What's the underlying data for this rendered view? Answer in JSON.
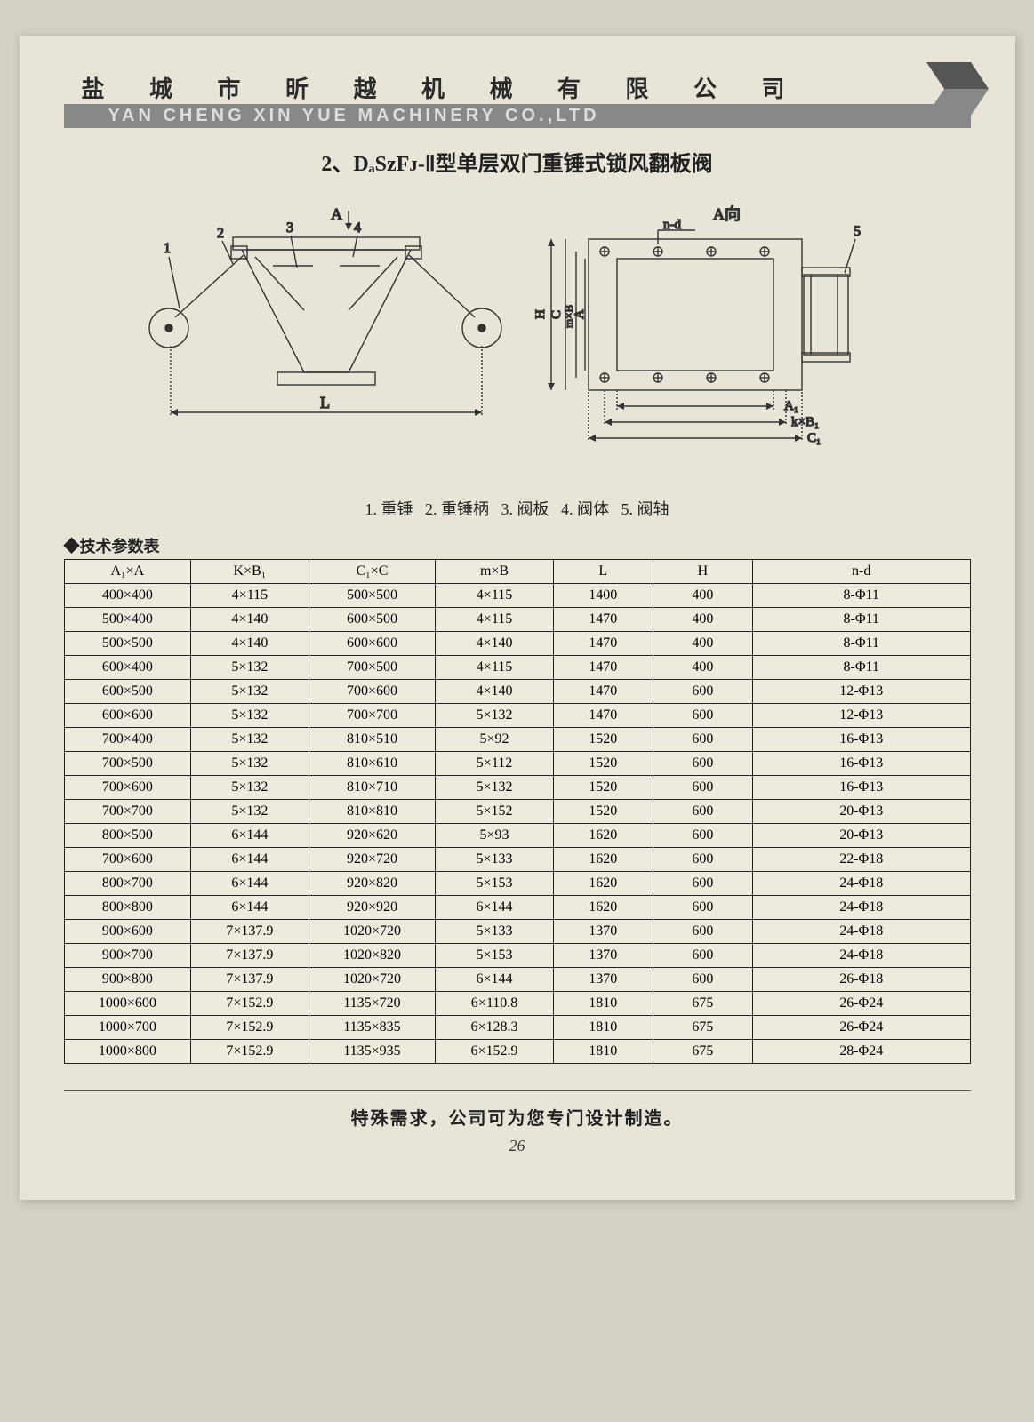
{
  "header": {
    "cn": "盐 城 市 昕 越 机 械 有 限 公 司",
    "en": "YAN CHENG XIN YUE MACHINERY CO.,LTD"
  },
  "title": {
    "prefix": "2、",
    "model": "DₐSᴢFᴊ-Ⅱ",
    "suffix": "型单层双门重锤式锁风翻板阀"
  },
  "diagram": {
    "arrow_label": "A",
    "view_label": "A向",
    "callouts": [
      "1",
      "2",
      "3",
      "4",
      "5"
    ],
    "dim_L": "L",
    "dim_H": "H",
    "dim_C": "C",
    "dim_mB": "m×B",
    "dim_A": "A",
    "dim_nd": "n-d",
    "dim_A1": "A₁",
    "dim_kB1": "k×B₁",
    "dim_C1": "C₁"
  },
  "parts_legend": {
    "p1": "1. 重锤",
    "p2": "2. 重锤柄",
    "p3": "3. 阀板",
    "p4": "4. 阀体",
    "p5": "5. 阀轴"
  },
  "table_title": "◆技术参数表",
  "table": {
    "columns": [
      "A₁×A",
      "K×B₁",
      "C₁×C",
      "m×B",
      "L",
      "H",
      "n-d"
    ],
    "col_widths": [
      "14%",
      "13%",
      "14%",
      "13%",
      "11%",
      "11%",
      "24%"
    ],
    "rows": [
      [
        "400×400",
        "4×115",
        "500×500",
        "4×115",
        "1400",
        "400",
        "8-Φ11"
      ],
      [
        "500×400",
        "4×140",
        "600×500",
        "4×115",
        "1470",
        "400",
        "8-Φ11"
      ],
      [
        "500×500",
        "4×140",
        "600×600",
        "4×140",
        "1470",
        "400",
        "8-Φ11"
      ],
      [
        "600×400",
        "5×132",
        "700×500",
        "4×115",
        "1470",
        "400",
        "8-Φ11"
      ],
      [
        "600×500",
        "5×132",
        "700×600",
        "4×140",
        "1470",
        "600",
        "12-Φ13"
      ],
      [
        "600×600",
        "5×132",
        "700×700",
        "5×132",
        "1470",
        "600",
        "12-Φ13"
      ],
      [
        "700×400",
        "5×132",
        "810×510",
        "5×92",
        "1520",
        "600",
        "16-Φ13"
      ],
      [
        "700×500",
        "5×132",
        "810×610",
        "5×112",
        "1520",
        "600",
        "16-Φ13"
      ],
      [
        "700×600",
        "5×132",
        "810×710",
        "5×132",
        "1520",
        "600",
        "16-Φ13"
      ],
      [
        "700×700",
        "5×132",
        "810×810",
        "5×152",
        "1520",
        "600",
        "20-Φ13"
      ],
      [
        "800×500",
        "6×144",
        "920×620",
        "5×93",
        "1620",
        "600",
        "20-Φ13"
      ],
      [
        "700×600",
        "6×144",
        "920×720",
        "5×133",
        "1620",
        "600",
        "22-Φ18"
      ],
      [
        "800×700",
        "6×144",
        "920×820",
        "5×153",
        "1620",
        "600",
        "24-Φ18"
      ],
      [
        "800×800",
        "6×144",
        "920×920",
        "6×144",
        "1620",
        "600",
        "24-Φ18"
      ],
      [
        "900×600",
        "7×137.9",
        "1020×720",
        "5×133",
        "1370",
        "600",
        "24-Φ18"
      ],
      [
        "900×700",
        "7×137.9",
        "1020×820",
        "5×153",
        "1370",
        "600",
        "24-Φ18"
      ],
      [
        "900×800",
        "7×137.9",
        "1020×720",
        "6×144",
        "1370",
        "600",
        "26-Φ18"
      ],
      [
        "1000×600",
        "7×152.9",
        "1135×720",
        "6×110.8",
        "1810",
        "675",
        "26-Φ24"
      ],
      [
        "1000×700",
        "7×152.9",
        "1135×835",
        "6×128.3",
        "1810",
        "675",
        "26-Φ24"
      ],
      [
        "1000×800",
        "7×152.9",
        "1135×935",
        "6×152.9",
        "1810",
        "675",
        "28-Φ24"
      ]
    ]
  },
  "bottom_note": "特殊需求，公司可为您专门设计制造。",
  "page_number": "26",
  "colors": {
    "page_bg": "#e8e4d8",
    "bar_bg": "#888888",
    "line": "#333333"
  }
}
